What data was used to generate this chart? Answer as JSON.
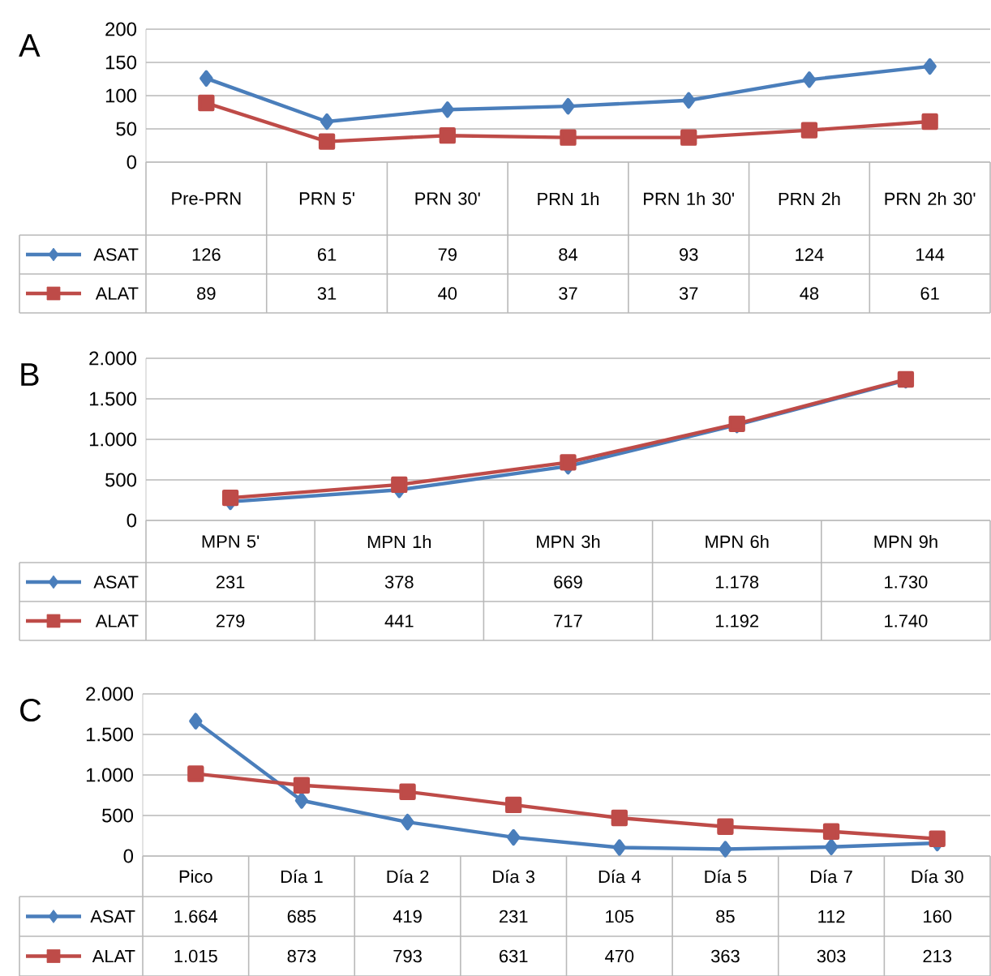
{
  "chart_data": [
    {
      "type": "line",
      "title": "A",
      "categories": [
        "Pre-PRN",
        "PRN 5'",
        "PRN 30'",
        "PRN 1h",
        "PRN 1h 30'",
        "PRN 2h",
        "PRN 2h 30'"
      ],
      "series": [
        {
          "name": "ASAT",
          "color": "#4a7ebb",
          "marker": "diamond",
          "values": [
            126,
            61,
            79,
            84,
            93,
            124,
            144
          ]
        },
        {
          "name": "ALAT",
          "color": "#be4b48",
          "marker": "square",
          "values": [
            89,
            31,
            40,
            37,
            37,
            48,
            61
          ]
        }
      ],
      "ylim": [
        0,
        200
      ],
      "yticks": [
        0,
        50,
        100,
        150,
        200
      ],
      "grid": "y",
      "legend": "bottom left",
      "data_labels": true
    },
    {
      "type": "line",
      "title": "B",
      "categories": [
        "MPN 5'",
        "MPN 1h",
        "MPN 3h",
        "MPN 6h",
        "MPN 9h"
      ],
      "series": [
        {
          "name": "ASAT",
          "color": "#4a7ebb",
          "marker": "diamond",
          "values": [
            231,
            378,
            669,
            1178,
            1730
          ],
          "value_labels": [
            "231",
            "378",
            "669",
            "1.178",
            "1.730"
          ]
        },
        {
          "name": "ALAT",
          "color": "#be4b48",
          "marker": "square",
          "values": [
            279,
            441,
            717,
            1192,
            1740
          ],
          "value_labels": [
            "279",
            "441",
            "717",
            "1.192",
            "1.740"
          ]
        }
      ],
      "ylim": [
        0,
        2000
      ],
      "yticks": [
        0,
        500,
        {
          "value": 1000,
          "label": "1.000"
        },
        {
          "value": 1500,
          "label": "1.500"
        },
        {
          "value": 2000,
          "label": "2.000"
        }
      ],
      "grid": "y",
      "legend": "bottom left"
    },
    {
      "type": "line",
      "title": "C",
      "categories": [
        "Pico",
        "Día 1",
        "Día 2",
        "Día 3",
        "Día 4",
        "Día 5",
        "Día 7",
        "Día 30"
      ],
      "series": [
        {
          "name": "ASAT",
          "color": "#4a7ebb",
          "marker": "diamond",
          "values": [
            1664,
            685,
            419,
            231,
            105,
            85,
            112,
            160
          ],
          "value_labels": [
            "1.664",
            "685",
            "419",
            "231",
            "105",
            "85",
            "112",
            "160"
          ]
        },
        {
          "name": "ALAT",
          "color": "#be4b48",
          "marker": "square",
          "values": [
            1015,
            873,
            793,
            631,
            470,
            363,
            303,
            213
          ],
          "value_labels": [
            "1.015",
            "873",
            "793",
            "631",
            "470",
            "363",
            "303",
            "213"
          ]
        }
      ],
      "ylim": [
        0,
        2000
      ],
      "yticks": [
        0,
        500,
        {
          "value": 1000,
          "label": "1.000"
        },
        {
          "value": 1500,
          "label": "1.500"
        },
        {
          "value": 2000,
          "label": "2.000"
        }
      ],
      "grid": "y",
      "legend": "bottom left"
    }
  ]
}
